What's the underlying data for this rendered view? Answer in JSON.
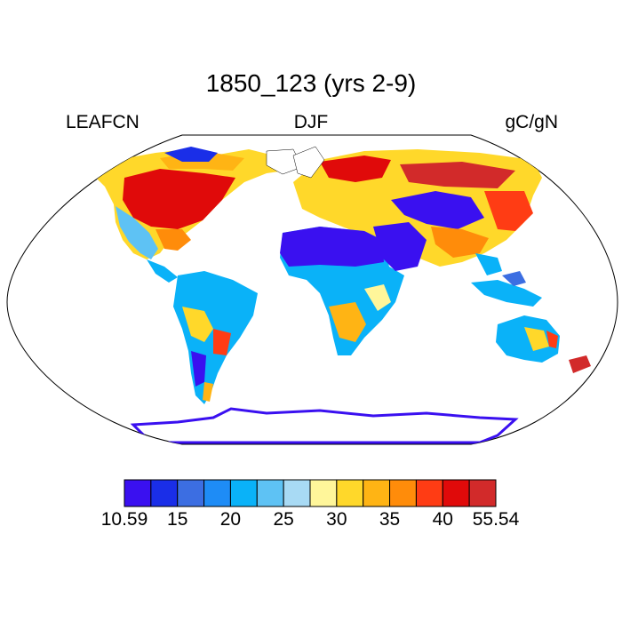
{
  "title": "1850_123 (yrs 2-9)",
  "left_label": "LEAFCN",
  "center_label": "DJF",
  "right_label": "gC/gN",
  "colorbar": {
    "colors": [
      "#3a10f0",
      "#1a2ee8",
      "#3c6ee2",
      "#1e8cf6",
      "#0ab2f8",
      "#5ec2f4",
      "#a8daf4",
      "#fff69a",
      "#ffd82a",
      "#ffb414",
      "#ff8c0a",
      "#ff3c14",
      "#e00a0a",
      "#d22a2a"
    ],
    "tick_labels": [
      "10.59",
      "15",
      "20",
      "25",
      "30",
      "35",
      "40",
      "55.54"
    ]
  },
  "chart_data": {
    "type": "map",
    "projection": "Robinson",
    "variable": "LEAFCN",
    "season": "DJF",
    "units": "gC/gN",
    "range": [
      10.59,
      55.54
    ],
    "regions": [
      {
        "name": "Sahara / Arabia",
        "level": "low"
      },
      {
        "name": "Antarctica coast",
        "level": "low"
      },
      {
        "name": "Eastern North America",
        "level": "high"
      },
      {
        "name": "Siberia",
        "level": "high"
      },
      {
        "name": "Amazon",
        "level": "mid-low"
      },
      {
        "name": "Central Africa",
        "level": "mid-low"
      },
      {
        "name": "Australia",
        "level": "mixed"
      }
    ]
  }
}
